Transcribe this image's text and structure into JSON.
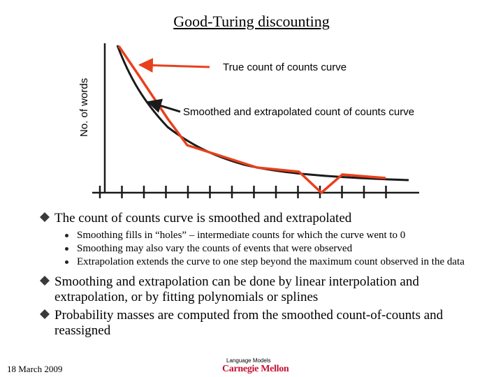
{
  "slide": {
    "title": "Good-Turing discounting",
    "figure": {
      "ylabel": "No. of words",
      "label_true": "True count of counts curve",
      "label_smoothed": "Smoothed and extrapolated count of counts curve",
      "colors": {
        "true_curve": "#e8401c",
        "smoothed_curve": "#1a1a1a",
        "axis": "#1a1a1a"
      }
    },
    "bullets": [
      {
        "text": "The count of counts curve is smoothed and extrapolated",
        "sub": [
          "Smoothing fills in “holes” – intermediate counts for which the curve went to 0",
          "Smoothing may also vary the counts of events that were observed",
          "Extrapolation extends the curve to one step beyond the maximum count observed in the data"
        ]
      },
      {
        "text": "Smoothing and extrapolation can be done by linear interpolation and extrapolation, or by fitting polynomials or splines",
        "sub": []
      },
      {
        "text": "Probability masses are computed from the smoothed count-of-counts and reassigned",
        "sub": []
      }
    ],
    "footer": {
      "date": "18 March 2009",
      "course": "Language Models",
      "logo": "Carnegie Mellon"
    }
  }
}
